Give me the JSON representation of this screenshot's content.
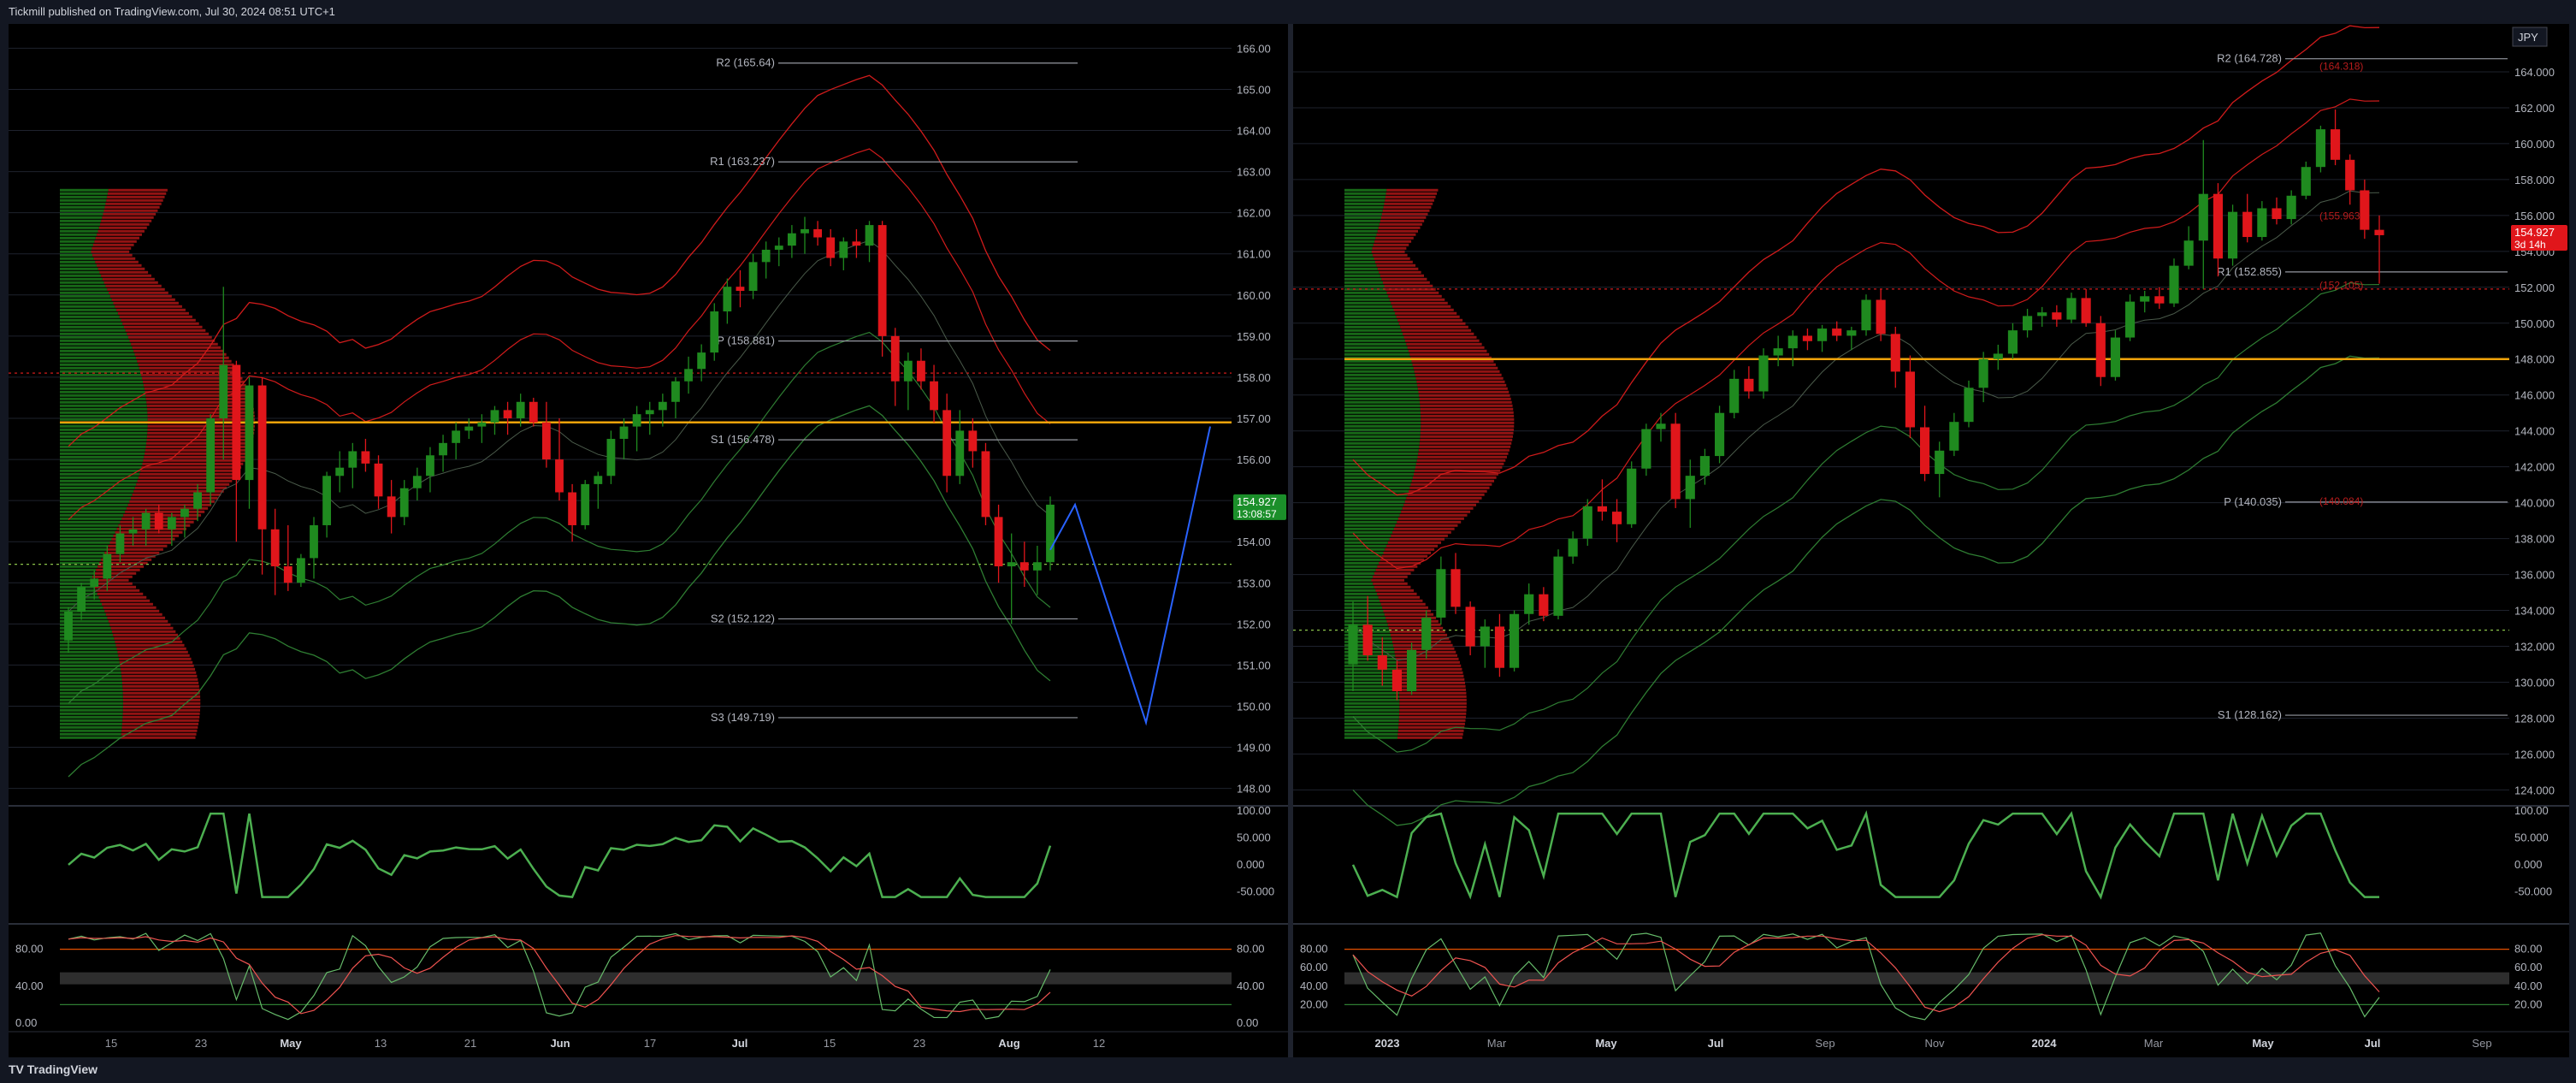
{
  "header": {
    "publisher_text": "Tickmill published on TradingView.com, Jul 30, 2024 08:51 UTC+1"
  },
  "footer": {
    "brand": "TradingView",
    "logo_glyph": "TV"
  },
  "colors": {
    "bg": "#000000",
    "up": "#1f8a1f",
    "down": "#e0161b",
    "grid": "#1e222d",
    "orange": "#f0a30a",
    "blue": "#2962ff",
    "red_band": "#d01b1b",
    "green_band": "#2e7d32"
  },
  "chart_data": [
    {
      "type": "candlestick",
      "name_label": "",
      "pane": "left",
      "y_axis_ticks": [
        "166.00",
        "165.00",
        "164.00",
        "163.00",
        "162.00",
        "161.00",
        "160.00",
        "159.00",
        "158.00",
        "157.00",
        "156.00",
        "155.00",
        "154.00",
        "153.00",
        "152.00",
        "151.00",
        "150.00",
        "149.00",
        "148.00"
      ],
      "ylim": [
        147.7,
        166.3
      ],
      "x_axis_ticks": [
        "15",
        "23",
        "May",
        "13",
        "21",
        "Jun",
        "17",
        "Jul",
        "15",
        "23",
        "Aug",
        "12"
      ],
      "current_price": "154.927",
      "countdown": "13:08:57",
      "pivot_levels": [
        {
          "label": "R2 (165.64)",
          "value": 165.64
        },
        {
          "label": "R1 (163.237)",
          "value": 163.237
        },
        {
          "label": "P (158.881)",
          "value": 158.881
        },
        {
          "label": "S1 (156.478)",
          "value": 156.478
        },
        {
          "label": "S2 (152.122)",
          "value": 152.122
        },
        {
          "label": "S3 (149.719)",
          "value": 149.719
        }
      ],
      "candles": [
        [
          151.6,
          152.4,
          151.3,
          152.3
        ],
        [
          152.3,
          153.0,
          152.1,
          152.9
        ],
        [
          152.9,
          153.3,
          152.6,
          153.1
        ],
        [
          153.1,
          153.9,
          152.8,
          153.7
        ],
        [
          153.7,
          154.4,
          153.5,
          154.2
        ],
        [
          154.2,
          154.6,
          153.9,
          154.3
        ],
        [
          154.3,
          154.8,
          153.9,
          154.7
        ],
        [
          154.7,
          154.9,
          154.2,
          154.3
        ],
        [
          154.3,
          154.7,
          153.9,
          154.6
        ],
        [
          154.6,
          154.9,
          154.1,
          154.8
        ],
        [
          154.8,
          155.4,
          154.5,
          155.2
        ],
        [
          155.2,
          157.1,
          154.9,
          157.0
        ],
        [
          157.0,
          160.2,
          156.0,
          158.3
        ],
        [
          158.3,
          158.4,
          154.0,
          155.5
        ],
        [
          155.5,
          158.0,
          154.8,
          157.8
        ],
        [
          157.8,
          158.0,
          153.2,
          154.3
        ],
        [
          154.3,
          154.8,
          152.7,
          153.4
        ],
        [
          153.4,
          154.4,
          152.8,
          153.0
        ],
        [
          153.0,
          153.7,
          152.9,
          153.6
        ],
        [
          153.6,
          154.6,
          153.1,
          154.4
        ],
        [
          154.4,
          155.7,
          154.1,
          155.6
        ],
        [
          155.6,
          156.2,
          155.2,
          155.8
        ],
        [
          155.8,
          156.4,
          155.3,
          156.2
        ],
        [
          156.2,
          156.5,
          155.7,
          155.9
        ],
        [
          155.9,
          156.1,
          154.8,
          155.1
        ],
        [
          155.1,
          155.5,
          154.2,
          154.6
        ],
        [
          154.6,
          155.5,
          154.4,
          155.3
        ],
        [
          155.3,
          155.8,
          155.0,
          155.6
        ],
        [
          155.6,
          156.3,
          155.2,
          156.1
        ],
        [
          156.1,
          156.6,
          155.7,
          156.4
        ],
        [
          156.4,
          156.9,
          156.0,
          156.7
        ],
        [
          156.7,
          157.0,
          156.5,
          156.8
        ],
        [
          156.8,
          157.1,
          156.4,
          156.9
        ],
        [
          156.9,
          157.3,
          156.6,
          157.2
        ],
        [
          157.2,
          157.4,
          156.6,
          157.0
        ],
        [
          157.0,
          157.6,
          156.8,
          157.4
        ],
        [
          157.4,
          157.5,
          156.8,
          156.9
        ],
        [
          156.9,
          157.4,
          155.8,
          156.0
        ],
        [
          156.0,
          157.0,
          155.0,
          155.2
        ],
        [
          155.2,
          155.4,
          154.0,
          154.4
        ],
        [
          154.4,
          155.5,
          154.3,
          155.4
        ],
        [
          155.4,
          155.7,
          154.8,
          155.6
        ],
        [
          155.6,
          156.7,
          155.4,
          156.5
        ],
        [
          156.5,
          157.0,
          156.0,
          156.8
        ],
        [
          156.8,
          157.3,
          156.2,
          157.1
        ],
        [
          157.1,
          157.4,
          156.6,
          157.2
        ],
        [
          157.2,
          157.6,
          156.8,
          157.4
        ],
        [
          157.4,
          158.0,
          157.0,
          157.9
        ],
        [
          157.9,
          158.5,
          157.6,
          158.2
        ],
        [
          158.2,
          158.8,
          157.9,
          158.6
        ],
        [
          158.6,
          159.8,
          158.4,
          159.6
        ],
        [
          159.6,
          160.4,
          159.3,
          160.2
        ],
        [
          160.2,
          160.6,
          159.7,
          160.1
        ],
        [
          160.1,
          161.0,
          159.9,
          160.8
        ],
        [
          160.8,
          161.3,
          160.4,
          161.1
        ],
        [
          161.1,
          161.4,
          160.7,
          161.2
        ],
        [
          161.2,
          161.7,
          160.9,
          161.5
        ],
        [
          161.5,
          161.9,
          161.0,
          161.6
        ],
        [
          161.6,
          161.8,
          161.2,
          161.4
        ],
        [
          161.4,
          161.6,
          160.7,
          160.9
        ],
        [
          160.9,
          161.4,
          160.6,
          161.3
        ],
        [
          161.3,
          161.6,
          160.9,
          161.2
        ],
        [
          161.2,
          161.8,
          160.8,
          161.7
        ],
        [
          161.7,
          161.8,
          158.5,
          159.0
        ],
        [
          159.0,
          159.2,
          157.3,
          157.9
        ],
        [
          157.9,
          158.6,
          157.2,
          158.4
        ],
        [
          158.4,
          158.7,
          157.7,
          157.9
        ],
        [
          157.9,
          158.3,
          156.9,
          157.2
        ],
        [
          157.2,
          157.6,
          155.2,
          155.6
        ],
        [
          155.6,
          157.2,
          155.4,
          156.7
        ],
        [
          156.7,
          157.0,
          155.8,
          156.2
        ],
        [
          156.2,
          156.4,
          154.4,
          154.6
        ],
        [
          154.6,
          154.9,
          153.0,
          153.4
        ],
        [
          153.4,
          154.2,
          152.0,
          153.5
        ],
        [
          153.5,
          154.0,
          152.9,
          153.3
        ],
        [
          153.3,
          153.9,
          152.7,
          153.5
        ],
        [
          153.5,
          155.1,
          153.3,
          154.9
        ]
      ],
      "rsi_panel": {
        "ticks": [
          "100.00",
          "50.000",
          "0.000",
          "-50.000"
        ]
      },
      "stoch_panel": {
        "ticks": [
          "80.00",
          "40.00",
          "0.00"
        ]
      }
    },
    {
      "type": "candlestick",
      "name_label": "JPY",
      "pane": "right",
      "y_axis_ticks": [
        "164.000",
        "162.000",
        "160.000",
        "158.000",
        "156.000",
        "154.000",
        "152.000",
        "150.000",
        "148.000",
        "146.000",
        "144.000",
        "142.000",
        "140.000",
        "138.000",
        "136.000",
        "134.000",
        "132.000",
        "130.000",
        "128.000",
        "126.000",
        "124.000"
      ],
      "ylim": [
        123.4,
        166.0
      ],
      "x_axis_ticks": [
        "2023",
        "Mar",
        "May",
        "Jul",
        "Sep",
        "Nov",
        "2024",
        "Mar",
        "May",
        "Jul",
        "Sep"
      ],
      "current_price": "154.927",
      "countdown": "3d 14h",
      "pivot_levels": [
        {
          "label": "R2 (164.728)",
          "value": 164.728
        },
        {
          "label": "R1 (152.855)",
          "value": 152.855
        },
        {
          "label": "P (140.035)",
          "value": 140.035
        },
        {
          "label": "S1 (128.162)",
          "value": 128.162
        }
      ],
      "profile_labels": [
        {
          "label": "(164.318)",
          "value": 164.318
        },
        {
          "label": "(155.963)",
          "value": 155.963
        },
        {
          "label": "(152.105)",
          "value": 152.105
        },
        {
          "label": "(140.084)",
          "value": 140.084
        }
      ],
      "candles": [
        [
          131.0,
          134.5,
          129.5,
          133.2
        ],
        [
          133.2,
          134.8,
          131.2,
          131.5
        ],
        [
          131.5,
          132.5,
          129.8,
          130.7
        ],
        [
          130.7,
          131.2,
          129.0,
          129.5
        ],
        [
          129.5,
          132.2,
          129.3,
          131.8
        ],
        [
          131.8,
          134.0,
          131.3,
          133.6
        ],
        [
          133.6,
          137.0,
          133.2,
          136.3
        ],
        [
          136.3,
          137.2,
          133.8,
          134.2
        ],
        [
          134.2,
          134.5,
          131.5,
          132.0
        ],
        [
          132.0,
          133.5,
          130.8,
          133.1
        ],
        [
          133.1,
          133.8,
          130.3,
          130.8
        ],
        [
          130.8,
          134.0,
          130.6,
          133.8
        ],
        [
          133.8,
          135.5,
          133.2,
          134.9
        ],
        [
          134.9,
          135.3,
          133.4,
          133.7
        ],
        [
          133.7,
          137.4,
          133.5,
          137.0
        ],
        [
          137.0,
          138.4,
          136.6,
          138.0
        ],
        [
          138.0,
          140.2,
          137.6,
          139.8
        ],
        [
          139.8,
          141.3,
          139.0,
          139.5
        ],
        [
          139.5,
          140.2,
          137.8,
          138.8
        ],
        [
          138.8,
          142.3,
          138.6,
          141.9
        ],
        [
          141.9,
          144.4,
          141.5,
          144.1
        ],
        [
          144.1,
          145.0,
          143.4,
          144.4
        ],
        [
          144.4,
          145.0,
          139.7,
          140.2
        ],
        [
          140.2,
          142.4,
          138.6,
          141.5
        ],
        [
          141.5,
          143.0,
          141.0,
          142.6
        ],
        [
          142.6,
          145.4,
          142.2,
          145.0
        ],
        [
          145.0,
          147.4,
          144.7,
          146.9
        ],
        [
          146.9,
          147.6,
          145.8,
          146.2
        ],
        [
          146.2,
          148.6,
          145.8,
          148.2
        ],
        [
          148.2,
          149.3,
          147.6,
          148.6
        ],
        [
          148.6,
          149.6,
          147.6,
          149.3
        ],
        [
          149.3,
          149.7,
          148.5,
          149.0
        ],
        [
          149.0,
          149.9,
          148.4,
          149.7
        ],
        [
          149.7,
          150.1,
          149.0,
          149.3
        ],
        [
          149.3,
          149.8,
          148.5,
          149.6
        ],
        [
          149.6,
          151.6,
          149.3,
          151.3
        ],
        [
          151.3,
          151.9,
          149.0,
          149.4
        ],
        [
          149.4,
          149.8,
          146.4,
          147.3
        ],
        [
          147.3,
          148.2,
          143.6,
          144.2
        ],
        [
          144.2,
          145.4,
          141.2,
          141.6
        ],
        [
          141.6,
          143.4,
          140.3,
          142.9
        ],
        [
          142.9,
          145.0,
          142.6,
          144.5
        ],
        [
          144.5,
          146.8,
          144.2,
          146.4
        ],
        [
          146.4,
          148.4,
          145.6,
          148.0
        ],
        [
          148.0,
          148.8,
          147.4,
          148.3
        ],
        [
          148.3,
          150.0,
          148.0,
          149.6
        ],
        [
          149.6,
          150.8,
          149.2,
          150.4
        ],
        [
          150.4,
          150.9,
          149.8,
          150.6
        ],
        [
          150.6,
          151.0,
          149.8,
          150.2
        ],
        [
          150.2,
          151.7,
          150.0,
          151.4
        ],
        [
          151.4,
          151.9,
          149.8,
          150.0
        ],
        [
          150.0,
          150.4,
          146.5,
          147.0
        ],
        [
          147.0,
          149.6,
          146.8,
          149.2
        ],
        [
          149.2,
          151.6,
          149.0,
          151.2
        ],
        [
          151.2,
          151.8,
          150.6,
          151.5
        ],
        [
          151.5,
          152.0,
          150.8,
          151.1
        ],
        [
          151.1,
          153.6,
          150.9,
          153.2
        ],
        [
          153.2,
          155.4,
          153.0,
          154.6
        ],
        [
          154.6,
          160.2,
          151.9,
          157.2
        ],
        [
          157.2,
          157.8,
          152.6,
          153.6
        ],
        [
          153.6,
          156.6,
          153.2,
          156.2
        ],
        [
          156.2,
          157.2,
          154.5,
          154.8
        ],
        [
          154.8,
          156.8,
          154.6,
          156.4
        ],
        [
          156.4,
          157.0,
          155.5,
          155.8
        ],
        [
          155.8,
          157.4,
          155.5,
          157.1
        ],
        [
          157.1,
          159.0,
          156.9,
          158.7
        ],
        [
          158.7,
          161.0,
          158.4,
          160.8
        ],
        [
          160.8,
          161.9,
          158.8,
          159.1
        ],
        [
          159.1,
          159.4,
          156.6,
          157.4
        ],
        [
          157.4,
          158.0,
          154.7,
          155.2
        ],
        [
          155.2,
          156.0,
          152.2,
          154.9
        ]
      ],
      "rsi_panel": {
        "ticks": [
          "100.00",
          "50.000",
          "0.000",
          "-50.000"
        ]
      },
      "stoch_panel": {
        "ticks": [
          "80.00",
          "60.00",
          "40.00",
          "20.00"
        ]
      }
    }
  ]
}
